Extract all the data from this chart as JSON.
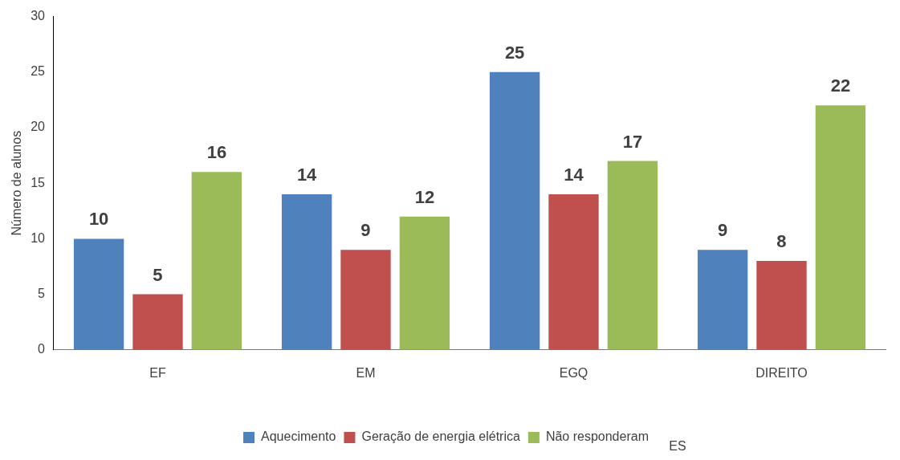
{
  "chart_data": {
    "type": "bar",
    "ylabel": "Número de alunos",
    "categories": [
      "EF",
      "EM",
      "EGQ",
      "DIREITO"
    ],
    "series": [
      {
        "name": "Aquecimento",
        "color": "#4f81bd",
        "values": [
          10,
          14,
          25,
          9
        ]
      },
      {
        "name": "Geração de energia elétrica",
        "color": "#c0504d",
        "values": [
          5,
          9,
          14,
          8
        ]
      },
      {
        "name": "Não responderam",
        "color": "#9bbb59",
        "values": [
          16,
          12,
          17,
          22
        ]
      }
    ],
    "ylim": [
      0,
      30
    ],
    "yticks": [
      0,
      5,
      10,
      15,
      20,
      25,
      30
    ],
    "grid": false,
    "legend": "bottom",
    "data_labels": true,
    "annotations": [
      "ES"
    ]
  }
}
